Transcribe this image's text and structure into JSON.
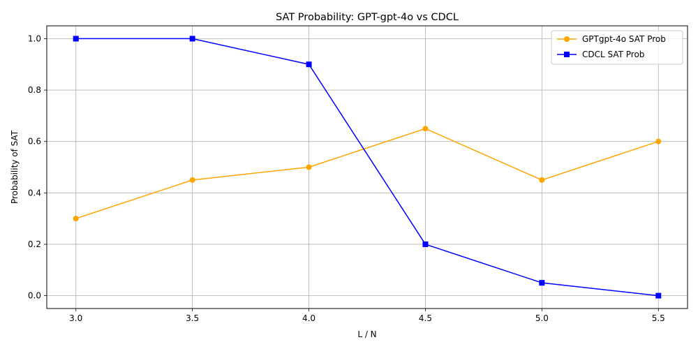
{
  "chart_data": {
    "type": "line",
    "title": "SAT Probability: GPT-gpt-4o vs CDCL",
    "xlabel": "L / N",
    "ylabel": "Probability of SAT",
    "x": [
      3.0,
      3.5,
      4.0,
      4.5,
      5.0,
      5.5
    ],
    "xticks": [
      "3.0",
      "3.5",
      "4.0",
      "4.5",
      "5.0",
      "5.5"
    ],
    "yticks": [
      "0.0",
      "0.2",
      "0.4",
      "0.6",
      "0.8",
      "1.0"
    ],
    "xlim": [
      2.875,
      5.625
    ],
    "ylim": [
      -0.05,
      1.05
    ],
    "grid": true,
    "legend_position": "top-right",
    "series": [
      {
        "name": "GPTgpt-4o SAT Prob",
        "color": "#ffa500",
        "marker": "circle",
        "values": [
          0.3,
          0.45,
          0.5,
          0.65,
          0.45,
          0.6
        ]
      },
      {
        "name": "CDCL SAT Prob",
        "color": "#0000ff",
        "marker": "square",
        "values": [
          1.0,
          1.0,
          0.9,
          0.2,
          0.05,
          0.0
        ]
      }
    ]
  }
}
